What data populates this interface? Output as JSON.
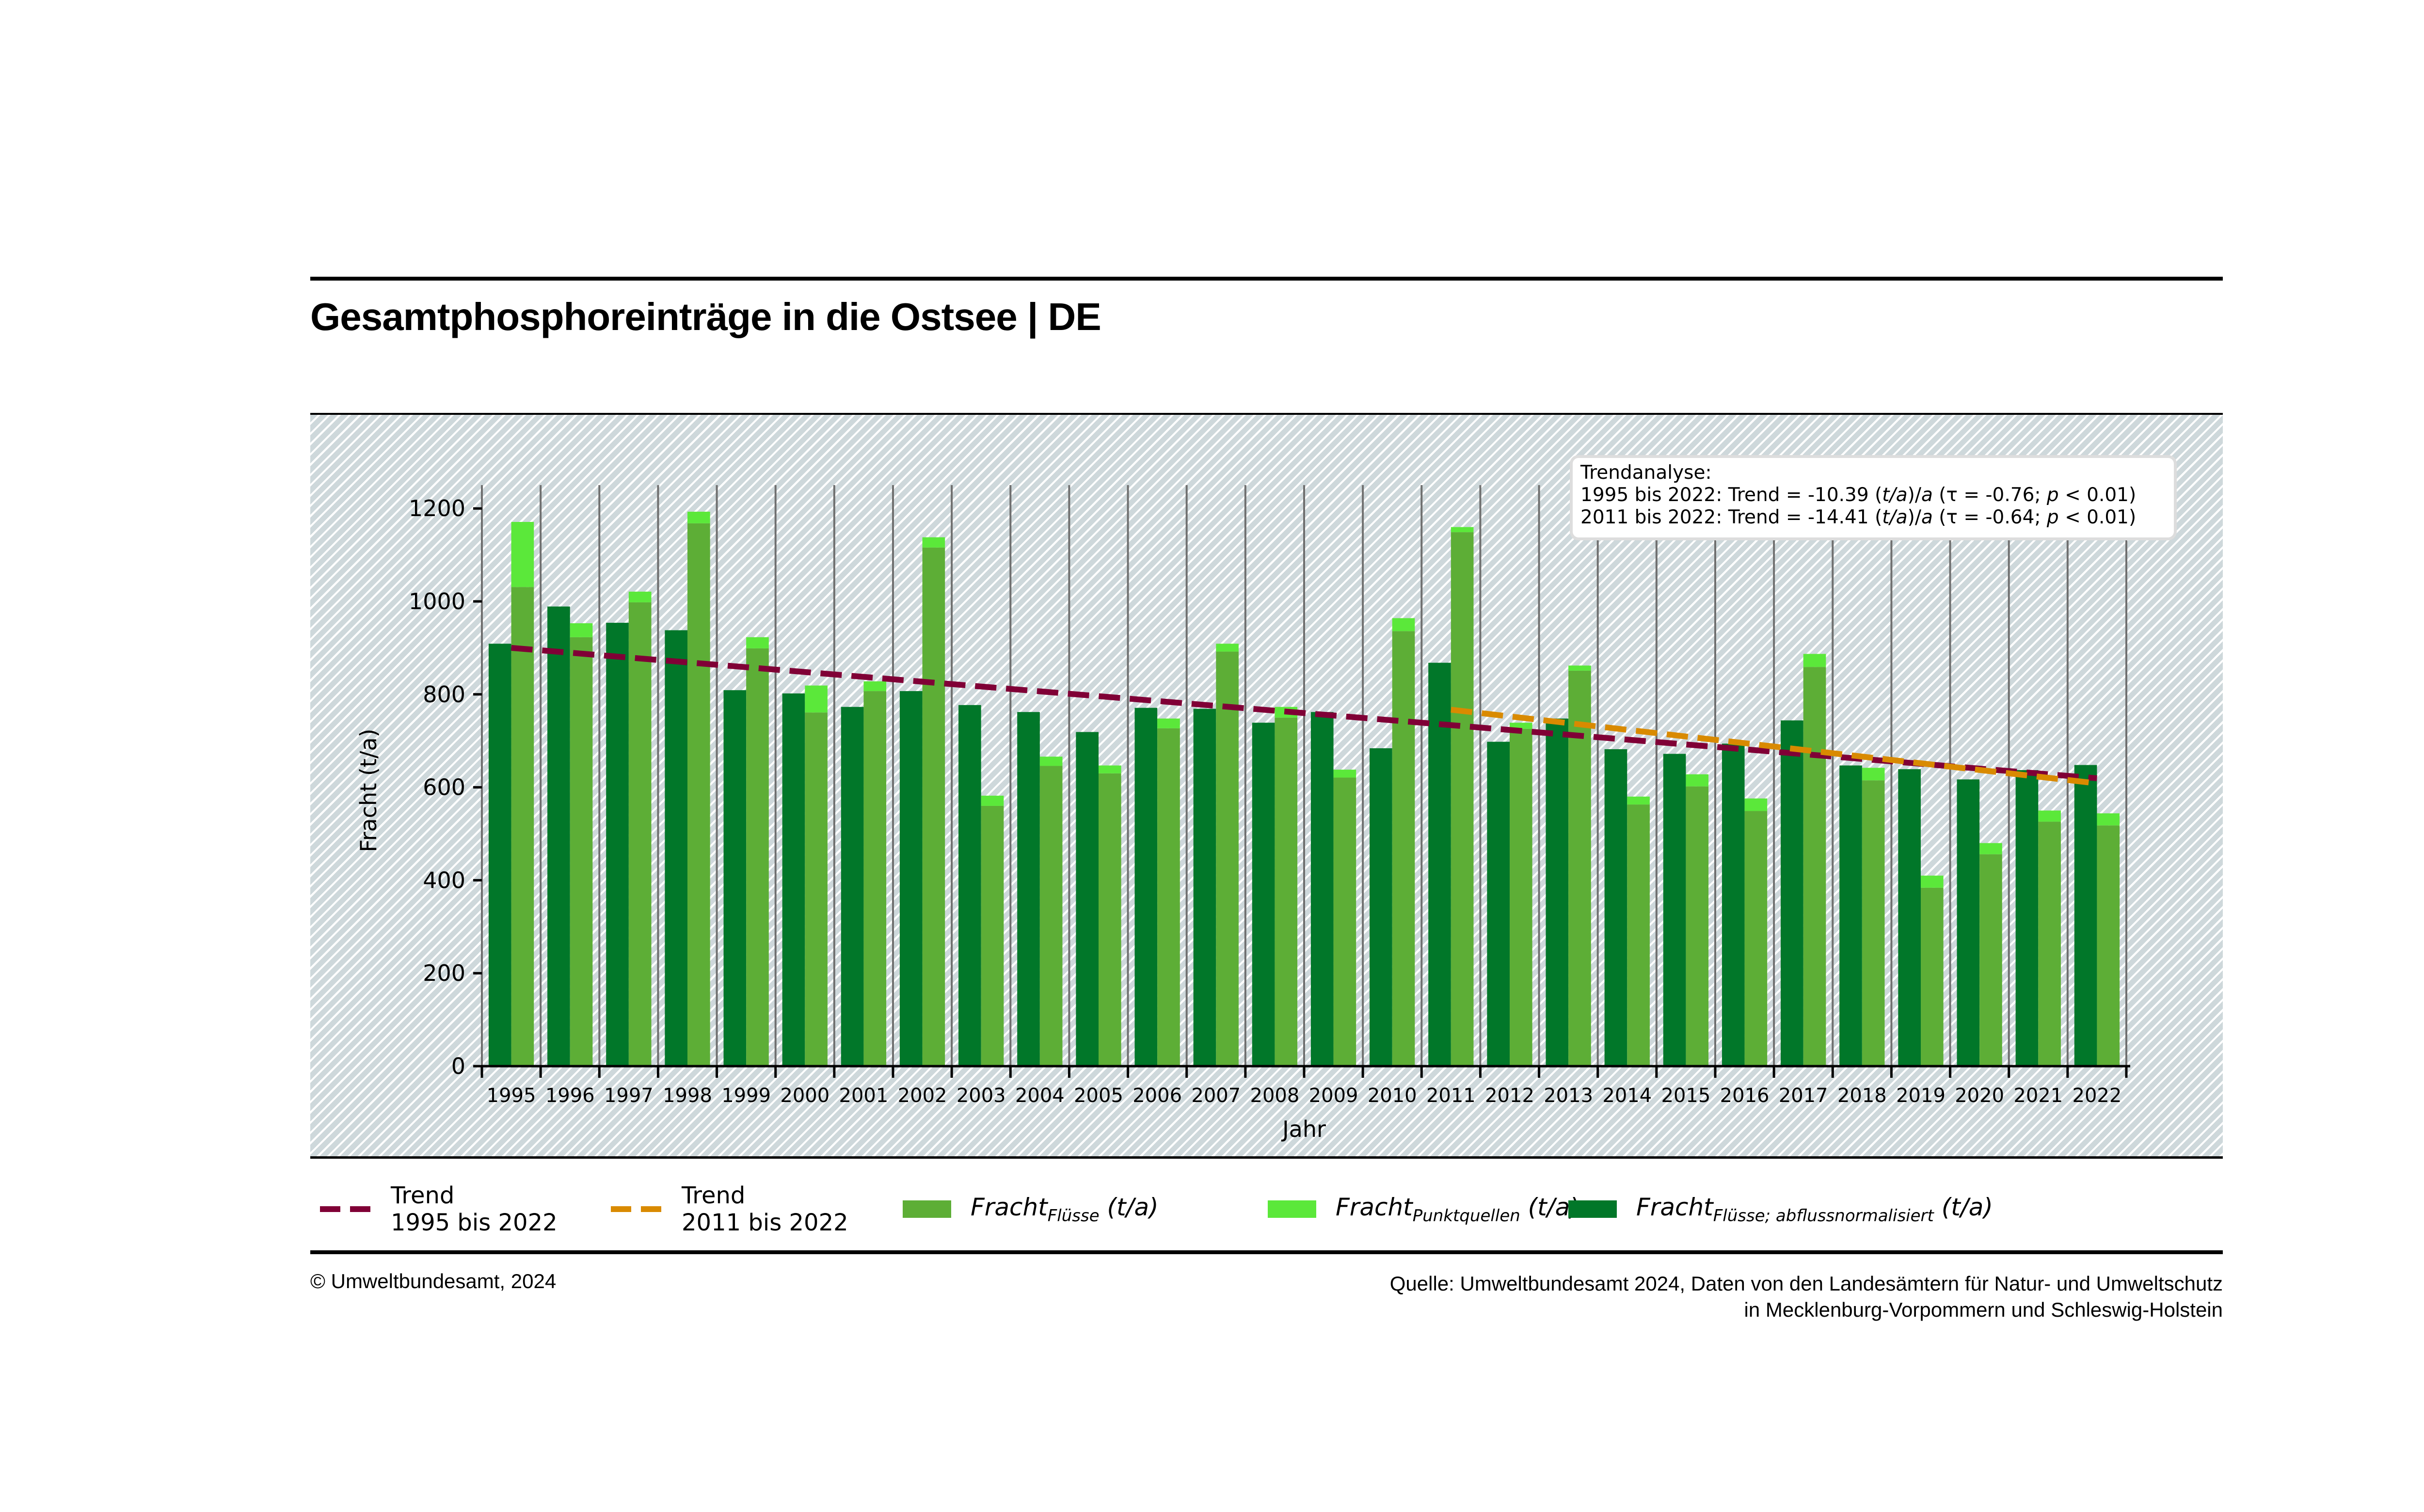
{
  "title": "Gesamtphosphoreinträge in die Ostsee | DE",
  "trend_box": {
    "heading": "Trendanalyse:",
    "line1_prefix": "1995 bis 2022: Trend = -10.39 (",
    "line1_unit": "t/a",
    "line1_mid": ")/",
    "line1_a": "a",
    "line1_tau": " (τ = -0.76; ",
    "line1_p": "p",
    "line1_end": " < 0.01)",
    "line2_prefix": "2011 bis 2022: Trend = -14.41 (",
    "line2_unit": "t/a",
    "line2_mid": ")/",
    "line2_a": "a",
    "line2_tau": " (τ = -0.64; ",
    "line2_p": "p",
    "line2_end": " < 0.01)"
  },
  "legend": {
    "trend1_line1": "Trend",
    "trend1_line2": "1995 bis 2022",
    "trend2_line1": "Trend",
    "trend2_line2": "2011 bis 2022",
    "fluesse_main": "Fracht",
    "fluesse_sub": "Flüsse",
    "fluesse_unit": " (t/a)",
    "punkt_main": "Fracht",
    "punkt_sub": "Punktquellen",
    "punkt_unit": " (t/a)",
    "norm_main": "Fracht",
    "norm_sub": "Flüsse; abflussnormalisiert",
    "norm_unit": " (t/a)"
  },
  "footer": {
    "copyright": "© Umweltbundesamt, 2024",
    "source_line1": "Quelle: Umweltbundesamt 2024, Daten von den Landesämtern für Natur- und Umweltschutz",
    "source_line2": "in Mecklenburg-Vorpommern und Schleswig-Holstein"
  },
  "colors": {
    "fluesse": "#5dae36",
    "punktquellen": "#5be83a",
    "normalisiert": "#017729",
    "trend_1995": "#800036",
    "trend_2011": "#d98a00",
    "gridline": "#6f6f6f"
  },
  "chart_data": {
    "type": "bar",
    "title": "Gesamtphosphoreinträge in die Ostsee | DE",
    "xlabel": "Jahr",
    "ylabel": "Fracht (t/a)",
    "ylim": [
      0,
      1250
    ],
    "yticks": [
      0,
      200,
      400,
      600,
      800,
      1000,
      1200
    ],
    "grid": "vertical category separators",
    "legend_position": "below",
    "categories": [
      "1995",
      "1996",
      "1997",
      "1998",
      "1999",
      "2000",
      "2001",
      "2002",
      "2003",
      "2004",
      "2005",
      "2006",
      "2007",
      "2008",
      "2009",
      "2010",
      "2011",
      "2012",
      "2013",
      "2014",
      "2015",
      "2016",
      "2017",
      "2018",
      "2019",
      "2020",
      "2021",
      "2022"
    ],
    "series": [
      {
        "name": "Fracht Flüsse; abflussnormalisiert (t/a)",
        "stack": "normalised",
        "values": [
          909,
          989,
          954,
          938,
          809,
          802,
          773,
          807,
          777,
          762,
          719,
          771,
          769,
          739,
          762,
          684,
          868,
          698,
          748,
          682,
          672,
          694,
          744,
          647,
          639,
          617,
          637,
          648
        ]
      },
      {
        "name": "Fracht Flüsse (t/a)",
        "stack": "total",
        "values": [
          1031,
          923,
          998,
          1168,
          899,
          761,
          807,
          1116,
          560,
          646,
          630,
          727,
          892,
          750,
          621,
          936,
          1149,
          726,
          851,
          563,
          602,
          549,
          859,
          615,
          384,
          456,
          526,
          518
        ]
      },
      {
        "name": "Fracht Punktquellen (t/a)",
        "stack": "total",
        "values": [
          140,
          30,
          23,
          25,
          24,
          58,
          21,
          22,
          22,
          20,
          17,
          21,
          17,
          23,
          17,
          28,
          11,
          13,
          11,
          17,
          26,
          27,
          28,
          27,
          26,
          24,
          24,
          26
        ]
      }
    ],
    "trends": [
      {
        "name": "Trend 1995 bis 2022",
        "from": 1995,
        "to": 2022,
        "start_value": 900,
        "slope": -10.39
      },
      {
        "name": "Trend 2011 bis 2022",
        "from": 2011,
        "to": 2022,
        "start_value": 767,
        "slope": -14.41
      }
    ]
  }
}
